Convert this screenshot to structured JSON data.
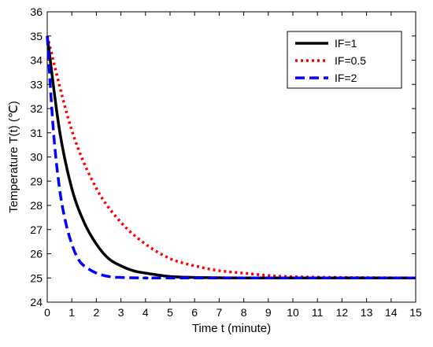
{
  "chart_data": {
    "type": "line",
    "xlabel": "Time t (minute)",
    "ylabel": "Temperature T(t) (℃)",
    "xlim": [
      0,
      15
    ],
    "ylim": [
      24,
      36
    ],
    "xticks": [
      0,
      1,
      2,
      3,
      4,
      5,
      6,
      7,
      8,
      9,
      10,
      11,
      12,
      13,
      14,
      15
    ],
    "yticks": [
      24,
      25,
      26,
      27,
      28,
      29,
      30,
      31,
      32,
      33,
      34,
      35,
      36
    ],
    "grid": false,
    "legend_position": "top-right",
    "series": [
      {
        "name": "IF=1",
        "color": "#000000",
        "dash": "solid",
        "x": [
          0,
          0.5,
          1,
          1.5,
          2,
          2.5,
          3,
          3.5,
          4,
          5,
          6,
          8,
          10,
          15
        ],
        "y": [
          35,
          31.1,
          28.7,
          27.3,
          26.4,
          25.8,
          25.5,
          25.3,
          25.2,
          25.06,
          25.02,
          25.0,
          25.0,
          25.0
        ]
      },
      {
        "name": "IF=0.5",
        "color": "#ff0000",
        "dash": "dotted",
        "x": [
          0,
          1,
          2,
          3,
          4,
          5,
          6,
          7,
          8,
          9,
          10,
          12,
          15
        ],
        "y": [
          35,
          31.1,
          28.7,
          27.3,
          26.4,
          25.8,
          25.5,
          25.3,
          25.2,
          25.1,
          25.05,
          25.02,
          25.0
        ]
      },
      {
        "name": "IF=2",
        "color": "#0000ff",
        "dash": "dashed",
        "x": [
          0,
          0.25,
          0.5,
          0.75,
          1,
          1.25,
          1.5,
          2,
          2.5,
          3,
          4,
          5,
          15
        ],
        "y": [
          35,
          31.1,
          28.7,
          27.3,
          26.4,
          25.8,
          25.5,
          25.2,
          25.06,
          25.02,
          25.0,
          25.0,
          25.0
        ]
      }
    ]
  }
}
